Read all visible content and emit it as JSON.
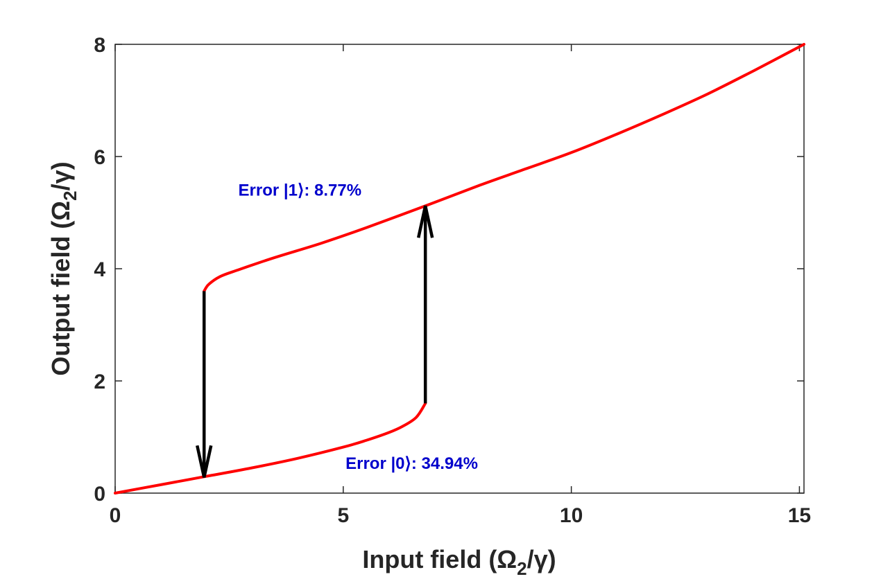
{
  "chart_data": {
    "type": "line",
    "xlabel": "Input field (Ω",
    "xlabel_sub": "2",
    "xlabel_tail": "/γ)",
    "ylabel": "Output field (Ω",
    "ylabel_sub": "2",
    "ylabel_tail": "/γ)",
    "xlim": [
      0,
      15.1
    ],
    "ylim": [
      0,
      8
    ],
    "xticks": [
      0,
      5,
      10,
      15
    ],
    "yticks": [
      0,
      2,
      4,
      6,
      8
    ],
    "grid": false,
    "colors": {
      "curve": "#ff0000",
      "arrow": "#000000",
      "annotation": "#0000cc",
      "axis": "#262626"
    },
    "series": [
      {
        "branch": "lower",
        "x": [
          0,
          1,
          2,
          3,
          4,
          5,
          5.5,
          6,
          6.3,
          6.6,
          6.8
        ],
        "y": [
          0,
          0.15,
          0.3,
          0.45,
          0.62,
          0.82,
          0.94,
          1.08,
          1.19,
          1.35,
          1.6
        ]
      },
      {
        "branch": "upper",
        "x": [
          1.95,
          2.05,
          2.3,
          2.7,
          3.5,
          4.5,
          5.5,
          6.8,
          8,
          9,
          10,
          11,
          12,
          13,
          14,
          15.1
        ],
        "y": [
          3.6,
          3.72,
          3.86,
          3.98,
          4.2,
          4.45,
          4.73,
          5.12,
          5.49,
          5.78,
          6.07,
          6.4,
          6.75,
          7.12,
          7.53,
          8.0
        ]
      }
    ],
    "arrows": [
      {
        "x": 1.95,
        "from_y": 3.6,
        "to_y": 0.28,
        "direction": "down"
      },
      {
        "x": 6.8,
        "from_y": 1.6,
        "to_y": 5.12,
        "direction": "up"
      }
    ],
    "annotations": [
      {
        "text": "Error |1⟩: 8.77%",
        "x": 2.7,
        "y": 5.3
      },
      {
        "text": "Error |0⟩: 34.94%",
        "x": 5.05,
        "y": 0.43
      }
    ]
  }
}
